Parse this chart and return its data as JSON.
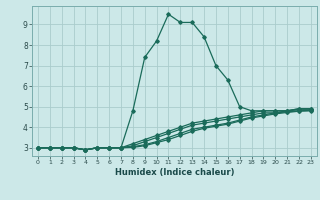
{
  "xlabel": "Humidex (Indice chaleur)",
  "ylabel": "",
  "background_color": "#cce8e8",
  "grid_color": "#aacccc",
  "line_color": "#1a6b5a",
  "xlim": [
    -0.5,
    23.5
  ],
  "ylim": [
    2.6,
    9.9
  ],
  "xticks": [
    0,
    1,
    2,
    3,
    4,
    5,
    6,
    7,
    8,
    9,
    10,
    11,
    12,
    13,
    14,
    15,
    16,
    17,
    18,
    19,
    20,
    21,
    22,
    23
  ],
  "yticks": [
    3,
    4,
    5,
    6,
    7,
    8,
    9
  ],
  "series": [
    {
      "x": [
        0,
        1,
        2,
        3,
        4,
        5,
        6,
        7,
        8,
        9,
        10,
        11,
        12,
        13,
        14,
        15,
        16,
        17,
        18,
        19,
        20,
        21,
        22,
        23
      ],
      "y": [
        3.0,
        3.0,
        3.0,
        3.0,
        2.9,
        3.0,
        3.0,
        3.0,
        4.8,
        7.4,
        8.2,
        9.5,
        9.1,
        9.1,
        8.4,
        7.0,
        6.3,
        5.0,
        4.8,
        4.8,
        4.8,
        4.8,
        4.9,
        4.9
      ]
    },
    {
      "x": [
        0,
        1,
        2,
        3,
        4,
        5,
        6,
        7,
        8,
        9,
        10,
        11,
        12,
        13,
        14,
        15,
        16,
        17,
        18,
        19,
        20,
        21,
        22,
        23
      ],
      "y": [
        3.0,
        3.0,
        3.0,
        3.0,
        2.9,
        3.0,
        3.0,
        3.0,
        3.2,
        3.4,
        3.6,
        3.8,
        4.0,
        4.2,
        4.3,
        4.4,
        4.5,
        4.6,
        4.7,
        4.8,
        4.8,
        4.8,
        4.9,
        4.9
      ]
    },
    {
      "x": [
        0,
        1,
        2,
        3,
        4,
        5,
        6,
        7,
        8,
        9,
        10,
        11,
        12,
        13,
        14,
        15,
        16,
        17,
        18,
        19,
        20,
        21,
        22,
        23
      ],
      "y": [
        3.0,
        3.0,
        3.0,
        3.0,
        2.9,
        3.0,
        3.0,
        3.0,
        3.1,
        3.3,
        3.5,
        3.7,
        3.9,
        4.1,
        4.2,
        4.3,
        4.4,
        4.5,
        4.6,
        4.7,
        4.7,
        4.8,
        4.85,
        4.85
      ]
    },
    {
      "x": [
        0,
        1,
        2,
        3,
        4,
        5,
        6,
        7,
        8,
        9,
        10,
        11,
        12,
        13,
        14,
        15,
        16,
        17,
        18,
        19,
        20,
        21,
        22,
        23
      ],
      "y": [
        3.0,
        3.0,
        3.0,
        3.0,
        2.9,
        3.0,
        3.0,
        3.0,
        3.05,
        3.15,
        3.3,
        3.5,
        3.7,
        3.9,
        4.0,
        4.1,
        4.2,
        4.35,
        4.5,
        4.6,
        4.7,
        4.75,
        4.8,
        4.82
      ]
    },
    {
      "x": [
        0,
        1,
        2,
        3,
        4,
        5,
        6,
        7,
        8,
        9,
        10,
        11,
        12,
        13,
        14,
        15,
        16,
        17,
        18,
        19,
        20,
        21,
        22,
        23
      ],
      "y": [
        3.0,
        3.0,
        3.0,
        3.0,
        2.9,
        3.0,
        3.0,
        3.0,
        3.02,
        3.1,
        3.25,
        3.4,
        3.6,
        3.8,
        3.95,
        4.05,
        4.15,
        4.3,
        4.45,
        4.55,
        4.65,
        4.72,
        4.78,
        4.8
      ]
    }
  ]
}
